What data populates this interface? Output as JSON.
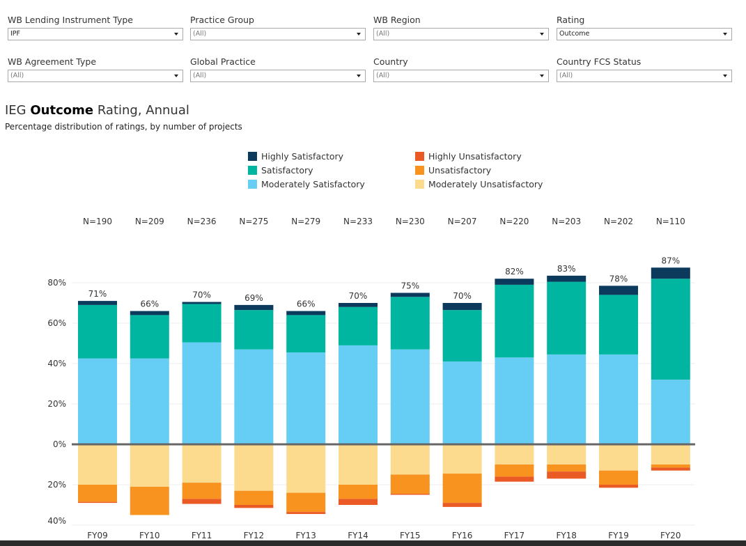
{
  "filters": [
    {
      "label": "WB Lending Instrument Type",
      "value": "IPF",
      "selected": true
    },
    {
      "label": "Practice Group",
      "value": "(All)",
      "selected": false
    },
    {
      "label": "WB Region",
      "value": "(All)",
      "selected": false
    },
    {
      "label": "Rating",
      "value": "Outcome",
      "selected": true
    },
    {
      "label": "WB Agreement Type",
      "value": "(All)",
      "selected": false
    },
    {
      "label": "Global Practice",
      "value": "(All)",
      "selected": false
    },
    {
      "label": "Country",
      "value": "(All)",
      "selected": false
    },
    {
      "label": "Country FCS Status",
      "value": "(All)",
      "selected": false
    }
  ],
  "title": {
    "prefix": "IEG ",
    "bold": "Outcome",
    "suffix": " Rating, Annual"
  },
  "subtitle": "Percentage distribution of ratings, by number of projects",
  "colors": {
    "highly_satisfactory": "#0b3a5c",
    "satisfactory": "#00b6a1",
    "moderately_satisfactory": "#66cdf4",
    "highly_unsatisfactory": "#ea5a25",
    "unsatisfactory": "#f7931e",
    "moderately_unsatisfactory": "#fddb8e",
    "zero_line": "#666666",
    "grid": "#eeeeee"
  },
  "legend": [
    {
      "label": "Highly Satisfactory",
      "color": "#0b3a5c"
    },
    {
      "label": "Highly Unsatisfactory",
      "color": "#ea5a25"
    },
    {
      "label": "Satisfactory",
      "color": "#00b6a1"
    },
    {
      "label": "Unsatisfactory",
      "color": "#f7931e"
    },
    {
      "label": "Moderately Satisfactory",
      "color": "#66cdf4"
    },
    {
      "label": "Moderately Unsatisfactory",
      "color": "#fddb8e"
    }
  ],
  "chart_data": {
    "type": "bar",
    "stacked": true,
    "diverging": true,
    "categories": [
      "FY09",
      "FY10",
      "FY11",
      "FY12",
      "FY13",
      "FY14",
      "FY15",
      "FY16",
      "FY17",
      "FY18",
      "FY19",
      "FY20"
    ],
    "n_labels": [
      "N=190",
      "N=209",
      "N=236",
      "N=275",
      "N=279",
      "N=233",
      "N=230",
      "N=207",
      "N=220",
      "N=203",
      "N=202",
      "N=110"
    ],
    "total_labels": [
      "71%",
      "66%",
      "70%",
      "69%",
      "66%",
      "70%",
      "75%",
      "70%",
      "82%",
      "83%",
      "78%",
      "87%"
    ],
    "positive_series": [
      {
        "name": "Moderately Satisfactory",
        "color": "#66cdf4",
        "values": [
          42.5,
          42.5,
          50.5,
          47,
          45.5,
          49,
          47,
          41,
          43,
          44.5,
          44.5,
          32
        ]
      },
      {
        "name": "Satisfactory",
        "color": "#00b6a1",
        "values": [
          26.5,
          21.5,
          19,
          19.5,
          18.5,
          19,
          26,
          25.5,
          36,
          36,
          29.5,
          50
        ]
      },
      {
        "name": "Highly Satisfactory",
        "color": "#0b3a5c",
        "values": [
          2,
          2,
          1,
          2.5,
          2,
          2,
          2,
          3.5,
          3,
          3,
          4.5,
          5.5
        ]
      }
    ],
    "negative_series": [
      {
        "name": "Moderately Unsatisfactory",
        "color": "#fddb8e",
        "values": [
          20,
          21,
          19,
          23,
          24,
          20,
          15,
          14.5,
          10,
          10,
          13,
          10
        ]
      },
      {
        "name": "Unsatisfactory",
        "color": "#f7931e",
        "values": [
          8.5,
          14,
          8,
          7,
          9.5,
          7,
          9.5,
          14.5,
          6,
          3.5,
          7,
          1.5
        ]
      },
      {
        "name": "Highly Unsatisfactory",
        "color": "#ea5a25",
        "values": [
          0.5,
          0,
          2.5,
          1.5,
          1,
          3,
          0.5,
          2,
          2.5,
          3.5,
          1.5,
          1.5
        ]
      }
    ],
    "y_ticks_positive": [
      {
        "value": 80,
        "label": "80%"
      },
      {
        "value": 60,
        "label": "60%"
      },
      {
        "value": 40,
        "label": "40%"
      },
      {
        "value": 20,
        "label": "20%"
      },
      {
        "value": 0,
        "label": "0%"
      }
    ],
    "y_ticks_negative": [
      {
        "value": 20,
        "label": "20%"
      },
      {
        "value": 40,
        "label": "40%"
      }
    ],
    "ylim": [
      -40,
      90
    ],
    "grid": true
  }
}
